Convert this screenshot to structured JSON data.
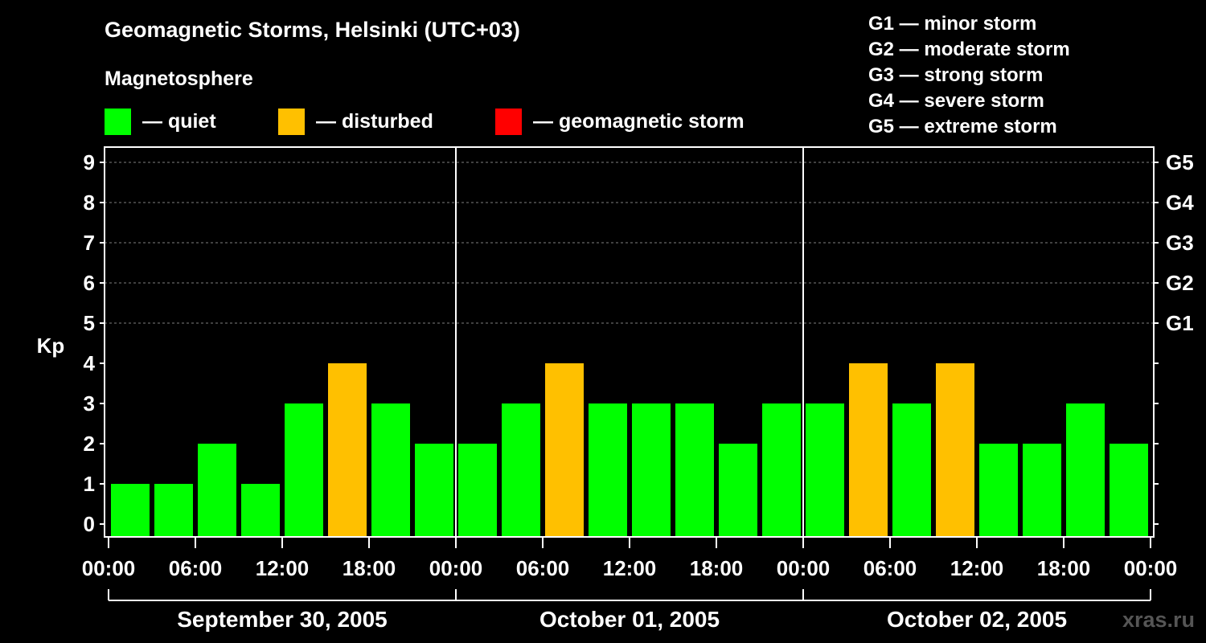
{
  "title": "Geomagnetic Storms, Helsinki (UTC+03)",
  "subtitle": "Magnetosphere",
  "legend": [
    {
      "label": "— quiet",
      "color": "#00ff00"
    },
    {
      "label": "— disturbed",
      "color": "#ffc000"
    },
    {
      "label": "— geomagnetic storm",
      "color": "#ff0000"
    }
  ],
  "storm_levels": [
    "G1 — minor storm",
    "G2 — moderate storm",
    "G3 — strong storm",
    "G4 — severe storm",
    "G5 — extreme storm"
  ],
  "watermark": "xras.ru",
  "chart_data": {
    "type": "bar",
    "ylabel": "Kp",
    "ylim": [
      0,
      9
    ],
    "yticks": [
      0,
      1,
      2,
      3,
      4,
      5,
      6,
      7,
      8,
      9
    ],
    "right_axis_labels": [
      {
        "kp": 5,
        "label": "G1"
      },
      {
        "kp": 6,
        "label": "G2"
      },
      {
        "kp": 7,
        "label": "G3"
      },
      {
        "kp": 8,
        "label": "G4"
      },
      {
        "kp": 9,
        "label": "G5"
      }
    ],
    "xtick_labels": [
      "00:00",
      "06:00",
      "12:00",
      "18:00",
      "00:00",
      "06:00",
      "12:00",
      "18:00",
      "00:00",
      "06:00",
      "12:00",
      "18:00",
      "00:00"
    ],
    "days": [
      "September 30, 2005",
      "October 01, 2005",
      "October 02, 2005"
    ],
    "bars_per_day": 8,
    "values": [
      1,
      1,
      2,
      1,
      3,
      4,
      3,
      2,
      2,
      3,
      4,
      3,
      3,
      3,
      2,
      3,
      3,
      4,
      3,
      4,
      2,
      2,
      3,
      2
    ],
    "categories": [
      "quiet",
      "quiet",
      "quiet",
      "quiet",
      "quiet",
      "disturbed",
      "quiet",
      "quiet",
      "quiet",
      "quiet",
      "disturbed",
      "quiet",
      "quiet",
      "quiet",
      "quiet",
      "quiet",
      "quiet",
      "disturbed",
      "quiet",
      "disturbed",
      "quiet",
      "quiet",
      "quiet",
      "quiet"
    ],
    "category_colors": {
      "quiet": "#00ff00",
      "disturbed": "#ffc000",
      "storm": "#ff0000"
    },
    "grid": "dashed at G1–G5 levels"
  }
}
